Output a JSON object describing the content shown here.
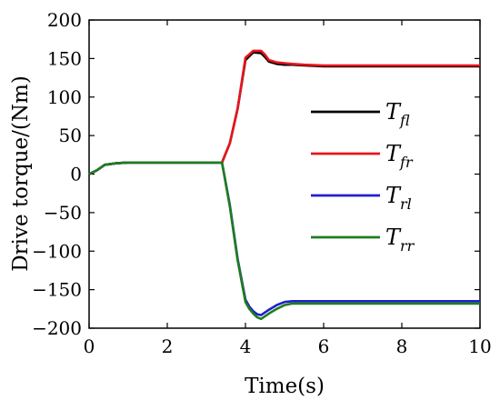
{
  "chart_data": {
    "type": "line",
    "xlabel": "Time(s)",
    "ylabel": "Drive torque/(Nm)",
    "xlim": [
      0,
      10
    ],
    "ylim": [
      -200,
      200
    ],
    "xticks": [
      0,
      2,
      4,
      6,
      8,
      10
    ],
    "xtick_labels": [
      "0",
      "2",
      "4",
      "6",
      "8",
      "10"
    ],
    "yticks": [
      -200,
      -150,
      -100,
      -50,
      0,
      50,
      100,
      150,
      200
    ],
    "ytick_labels": [
      "−200",
      "−150",
      "−100",
      "−50",
      "0",
      "50",
      "100",
      "150",
      "200"
    ],
    "grid": false,
    "legend_position": "center-right",
    "series": [
      {
        "name": "T_fl",
        "legend_main": "T",
        "legend_sub": "fl",
        "color": "#000000",
        "x": [
          0,
          0.2,
          0.4,
          0.7,
          1.0,
          1.5,
          2.0,
          2.5,
          3.0,
          3.4,
          3.6,
          3.8,
          4.0,
          4.2,
          4.4,
          4.5,
          4.6,
          4.8,
          5.0,
          5.2,
          5.5,
          6.0,
          7.0,
          8.0,
          9.0,
          10.0
        ],
        "y": [
          0,
          5,
          12,
          14,
          15,
          15,
          15,
          15,
          15,
          15,
          40,
          85,
          148,
          158,
          157,
          152,
          146,
          143,
          142,
          142,
          141,
          140,
          140,
          140,
          140,
          140
        ]
      },
      {
        "name": "T_fr",
        "legend_main": "T",
        "legend_sub": "fr",
        "color": "#e8141c",
        "x": [
          0,
          0.2,
          0.4,
          0.7,
          1.0,
          1.5,
          2.0,
          2.5,
          3.0,
          3.4,
          3.6,
          3.8,
          4.0,
          4.2,
          4.4,
          4.5,
          4.6,
          4.8,
          5.0,
          5.2,
          5.5,
          6.0,
          7.0,
          8.0,
          9.0,
          10.0
        ],
        "y": [
          0,
          5,
          12,
          14,
          15,
          15,
          15,
          15,
          15,
          15,
          40,
          85,
          151,
          160,
          160,
          155,
          148,
          145,
          144,
          143,
          142,
          141,
          141,
          141,
          141,
          141
        ]
      },
      {
        "name": "T_rl",
        "legend_main": "T",
        "legend_sub": "rl",
        "color": "#1f1fcf",
        "x": [
          0,
          0.2,
          0.4,
          0.7,
          1.0,
          1.5,
          2.0,
          2.5,
          3.0,
          3.4,
          3.6,
          3.8,
          4.0,
          4.1,
          4.2,
          4.3,
          4.4,
          4.6,
          4.8,
          5.0,
          5.2,
          5.5,
          6.0,
          7.0,
          8.0,
          9.0,
          10.0
        ],
        "y": [
          0,
          5,
          12,
          14,
          15,
          15,
          15,
          15,
          15,
          15,
          -40,
          -110,
          -163,
          -172,
          -178,
          -182,
          -183,
          -176,
          -170,
          -166,
          -165,
          -165,
          -165,
          -165,
          -165,
          -165,
          -165
        ]
      },
      {
        "name": "T_rr",
        "legend_main": "T",
        "legend_sub": "rr",
        "color": "#1e7d1e",
        "x": [
          0,
          0.2,
          0.4,
          0.7,
          1.0,
          1.5,
          2.0,
          2.5,
          3.0,
          3.4,
          3.6,
          3.8,
          4.0,
          4.1,
          4.2,
          4.3,
          4.4,
          4.6,
          4.8,
          5.0,
          5.2,
          5.5,
          6.0,
          7.0,
          8.0,
          9.0,
          10.0
        ],
        "y": [
          0,
          5,
          12,
          14,
          15,
          15,
          15,
          15,
          15,
          15,
          -42,
          -112,
          -166,
          -175,
          -181,
          -186,
          -188,
          -181,
          -175,
          -170,
          -168,
          -168,
          -168,
          -168,
          -168,
          -168,
          -168
        ]
      }
    ]
  }
}
